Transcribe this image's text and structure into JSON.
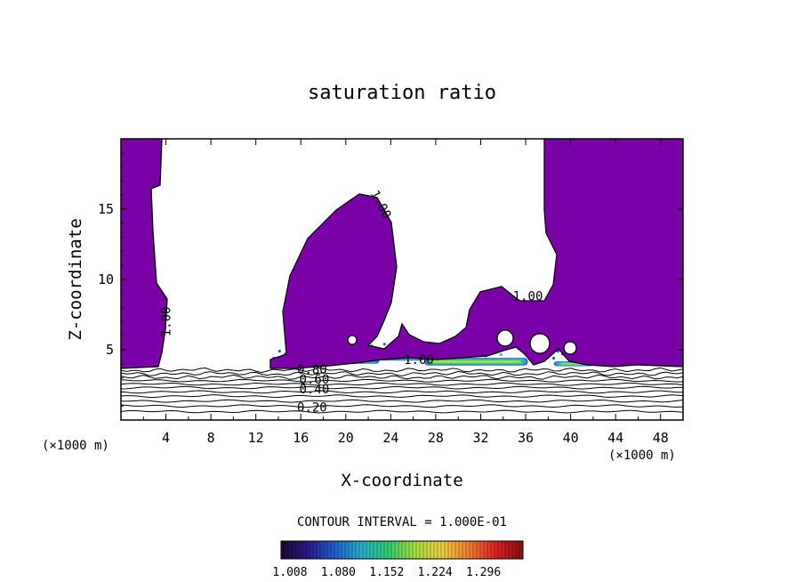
{
  "chart_data": {
    "type": "contour",
    "title": "saturation ratio",
    "xlabel": "X-coordinate",
    "ylabel": "Z-coordinate",
    "x_unit": "(×1000 m)",
    "y_unit": "(×1000 m)",
    "xlim": [
      0,
      50
    ],
    "ylim": [
      0,
      20
    ],
    "xticks": [
      4,
      8,
      12,
      16,
      20,
      24,
      28,
      32,
      36,
      40,
      44,
      48
    ],
    "yticks": [
      5,
      10,
      15
    ],
    "contour_interval_text": "CONTOUR INTERVAL = 1.000E-01",
    "contour_labels": [
      {
        "text": "1.00",
        "x": 4.4,
        "y": 7.0
      },
      {
        "text": "1.00",
        "x": 22.8,
        "y": 15.2
      },
      {
        "text": "1.00",
        "x": 36.2,
        "y": 8.5
      },
      {
        "text": "1.00",
        "x": 26.5,
        "y": 4.0
      },
      {
        "text": "0.80",
        "x": 17.0,
        "y": 3.3
      },
      {
        "text": "0.60",
        "x": 17.2,
        "y": 2.6
      },
      {
        "text": "0.40",
        "x": 17.2,
        "y": 1.9
      },
      {
        "text": "0.20",
        "x": 17.0,
        "y": 0.6
      }
    ],
    "contour_levels_below_cloud": [
      0.2,
      0.4,
      0.6,
      0.8
    ],
    "colorbar": {
      "ticks": [
        "1.008",
        "1.080",
        "1.152",
        "1.224",
        "1.296"
      ],
      "colors": [
        "#1a0a2a",
        "#2a1a8a",
        "#1f5fd0",
        "#28b0c8",
        "#30d070",
        "#a8e040",
        "#f0d040",
        "#f08030",
        "#e02020",
        "#8a1010"
      ]
    },
    "fill_color": "#7a00a8"
  }
}
